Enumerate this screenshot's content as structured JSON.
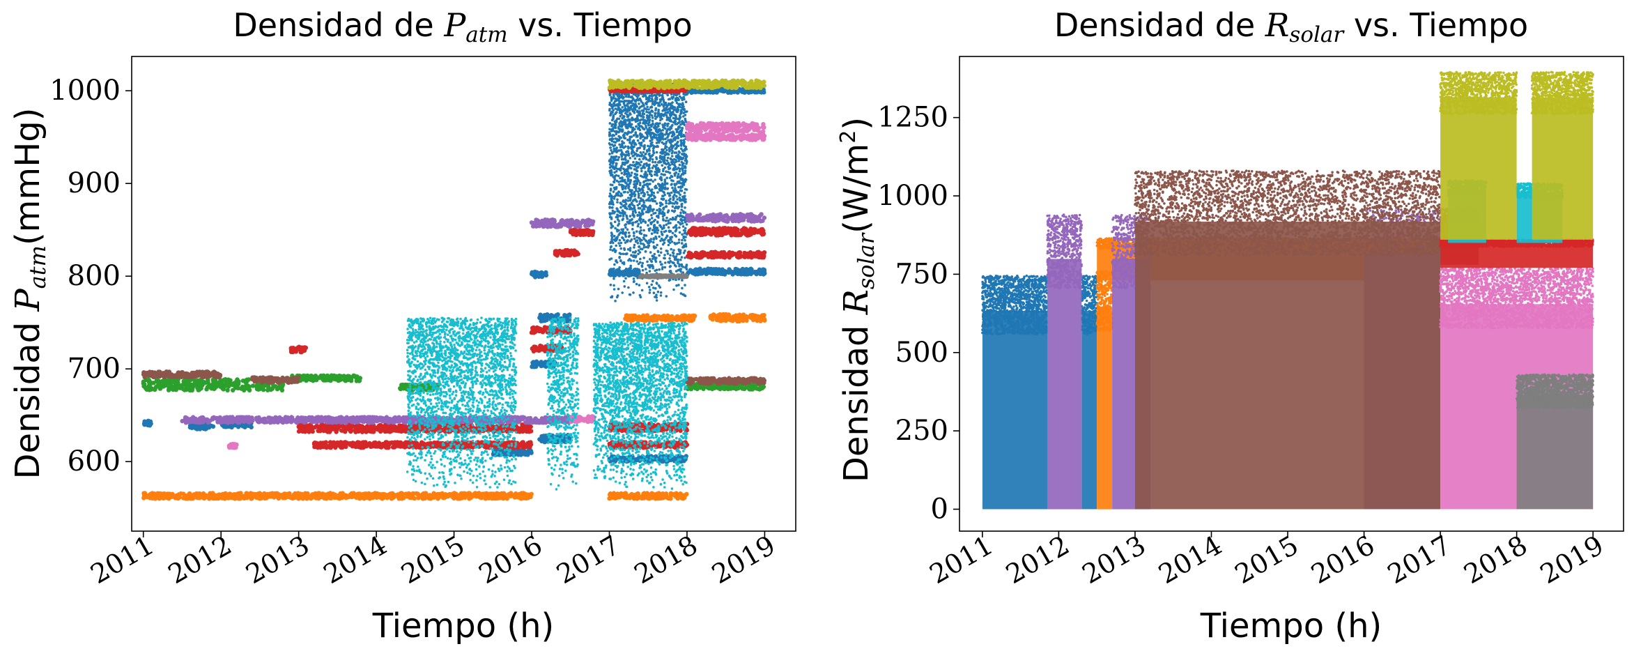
{
  "figure": {
    "xlabel": "Tiempo (h)"
  },
  "chart_data": [
    {
      "type": "scatter",
      "title_parts": {
        "prefix": "Densidad de ",
        "symbol": "P",
        "subscript": "atm",
        "suffix": " vs. Tiempo"
      },
      "xlabel": "Tiempo (h)",
      "ylabel_parts": {
        "prefix": "Densidad ",
        "symbol": "P",
        "subscript": "atm",
        "suffix": "(mmHg)"
      },
      "x_ticks": [
        "2011",
        "2012",
        "2013",
        "2014",
        "2015",
        "2016",
        "2017",
        "2018",
        "2019"
      ],
      "y_ticks": [
        "600",
        "700",
        "800",
        "900",
        "1000"
      ],
      "xlim": [
        2010.85,
        2019.4
      ],
      "ylim": [
        525,
        1037
      ],
      "grid": false,
      "legend": "none",
      "series": [
        {
          "color": "#1f77b4",
          "segments": [
            {
              "x": [
                2011.0,
                2011.1
              ],
              "y": [
                641,
                641
              ],
              "spread": 3
            },
            {
              "x": [
                2011.6,
                2011.9
              ],
              "y": [
                638,
                638
              ],
              "spread": 3
            },
            {
              "x": [
                2012.0,
                2012.4
              ],
              "y": [
                640,
                640
              ],
              "spread": 3
            },
            {
              "x": [
                2015.5,
                2016.0
              ],
              "y": [
                610,
                610
              ],
              "spread": 3
            },
            {
              "x": [
                2016.1,
                2016.5
              ],
              "y": [
                625,
                625
              ],
              "spread": 4
            },
            {
              "x": [
                2017.0,
                2018.0
              ],
              "y": [
                603,
                603
              ],
              "spread": 3
            },
            {
              "x": [
                2016.0,
                2016.3
              ],
              "y": [
                705,
                705
              ],
              "spread": 3
            },
            {
              "x": [
                2016.0,
                2016.2
              ],
              "y": [
                802,
                802
              ],
              "spread": 3
            },
            {
              "x": [
                2016.1,
                2016.5
              ],
              "y": [
                755,
                755
              ],
              "spread": 4
            },
            {
              "x": [
                2017.0,
                2017.4
              ],
              "y": [
                804,
                804
              ],
              "spread": 3
            },
            {
              "x": [
                2018.0,
                2019.0
              ],
              "y": [
                805,
                805
              ],
              "spread": 3
            },
            {
              "x": [
                2017.0,
                2018.0
              ],
              "y": [
                1003,
                1003
              ],
              "spread": 4
            },
            {
              "x": [
                2018.0,
                2019.0
              ],
              "y": [
                1000,
                1000
              ],
              "spread": 2
            }
          ],
          "burst": {
            "x": [
              2017.0,
              2018.0
            ],
            "y": [
              770,
              1005
            ],
            "n": 2600
          }
        },
        {
          "color": "#ff7f0e",
          "segments": [
            {
              "x": [
                2011.0,
                2016.0
              ],
              "y": [
                563,
                563
              ],
              "spread": 3
            },
            {
              "x": [
                2017.0,
                2018.0
              ],
              "y": [
                563,
                563
              ],
              "spread": 3
            },
            {
              "x": [
                2017.2,
                2018.1
              ],
              "y": [
                755,
                755
              ],
              "spread": 3
            },
            {
              "x": [
                2018.3,
                2019.0
              ],
              "y": [
                755,
                755
              ],
              "spread": 4
            }
          ]
        },
        {
          "color": "#2ca02c",
          "segments": [
            {
              "x": [
                2011.0,
                2012.8
              ],
              "y": [
                683,
                683
              ],
              "spread": 6
            },
            {
              "x": [
                2012.9,
                2013.8
              ],
              "y": [
                690,
                690
              ],
              "spread": 3
            },
            {
              "x": [
                2014.3,
                2014.8
              ],
              "y": [
                680,
                680
              ],
              "spread": 3
            },
            {
              "x": [
                2018.0,
                2019.0
              ],
              "y": [
                681,
                681
              ],
              "spread": 3
            }
          ]
        },
        {
          "color": "#d62728",
          "segments": [
            {
              "x": [
                2012.9,
                2013.1
              ],
              "y": [
                721,
                721
              ],
              "spread": 3
            },
            {
              "x": [
                2013.0,
                2016.0
              ],
              "y": [
                636,
                636
              ],
              "spread": 4
            },
            {
              "x": [
                2013.2,
                2016.0
              ],
              "y": [
                618,
                618
              ],
              "spread": 3
            },
            {
              "x": [
                2016.0,
                2016.5
              ],
              "y": [
                742,
                742
              ],
              "spread": 3
            },
            {
              "x": [
                2016.0,
                2016.4
              ],
              "y": [
                722,
                722
              ],
              "spread": 3
            },
            {
              "x": [
                2016.3,
                2016.6
              ],
              "y": [
                825,
                825
              ],
              "spread": 3
            },
            {
              "x": [
                2016.5,
                2016.8
              ],
              "y": [
                847,
                847
              ],
              "spread": 3
            },
            {
              "x": [
                2017.0,
                2018.0
              ],
              "y": [
                637,
                637
              ],
              "spread": 4
            },
            {
              "x": [
                2017.0,
                2018.0
              ],
              "y": [
                618,
                618
              ],
              "spread": 3
            },
            {
              "x": [
                2018.0,
                2019.0
              ],
              "y": [
                848,
                848
              ],
              "spread": 4
            },
            {
              "x": [
                2018.0,
                2019.0
              ],
              "y": [
                823,
                823
              ],
              "spread": 3
            },
            {
              "x": [
                2017.0,
                2018.0
              ],
              "y": [
                1001,
                1001
              ],
              "spread": 2
            }
          ]
        },
        {
          "color": "#9467bd",
          "segments": [
            {
              "x": [
                2011.5,
                2016.5
              ],
              "y": [
                645,
                645
              ],
              "spread": 3
            },
            {
              "x": [
                2016.0,
                2016.8
              ],
              "y": [
                857,
                857
              ],
              "spread": 4
            },
            {
              "x": [
                2018.0,
                2019.0
              ],
              "y": [
                863,
                863
              ],
              "spread": 4
            }
          ]
        },
        {
          "color": "#8c564b",
          "segments": [
            {
              "x": [
                2011.0,
                2012.0
              ],
              "y": [
                694,
                694
              ],
              "spread": 3
            },
            {
              "x": [
                2012.4,
                2013.0
              ],
              "y": [
                688,
                688
              ],
              "spread": 3
            },
            {
              "x": [
                2018.0,
                2019.0
              ],
              "y": [
                687,
                687
              ],
              "spread": 3
            }
          ]
        },
        {
          "color": "#e377c2",
          "segments": [
            {
              "x": [
                2012.1,
                2012.2
              ],
              "y": [
                617,
                617
              ],
              "spread": 2
            },
            {
              "x": [
                2016.5,
                2016.8
              ],
              "y": [
                646,
                646
              ],
              "spread": 3
            },
            {
              "x": [
                2018.0,
                2019.0
              ],
              "y": [
                960,
                960
              ],
              "spread": 5
            },
            {
              "x": [
                2018.0,
                2019.0
              ],
              "y": [
                950,
                950
              ],
              "spread": 3
            }
          ]
        },
        {
          "color": "#7f7f7f",
          "segments": [
            {
              "x": [
                2017.4,
                2018.0
              ],
              "y": [
                800,
                800
              ],
              "spread": 1
            }
          ]
        },
        {
          "color": "#bcbd22",
          "segments": [
            {
              "x": [
                2017.0,
                2019.0
              ],
              "y": [
                1007,
                1007
              ],
              "spread": 4
            }
          ]
        },
        {
          "color": "#17becf",
          "bursts": [
            {
              "x": [
                2014.4,
                2015.8
              ],
              "y": [
                570,
                755
              ],
              "n": 2600
            },
            {
              "x": [
                2016.2,
                2016.6
              ],
              "y": [
                570,
                755
              ],
              "n": 700
            },
            {
              "x": [
                2016.8,
                2018.0
              ],
              "y": [
                570,
                750
              ],
              "n": 2600
            }
          ]
        }
      ]
    },
    {
      "type": "scatter",
      "title_parts": {
        "prefix": "Densidad de ",
        "symbol": "R",
        "subscript": "solar",
        "suffix": " vs. Tiempo"
      },
      "xlabel": "Tiempo (h)",
      "ylabel_parts": {
        "prefix": "Densidad ",
        "symbol": "R",
        "subscript": "solar",
        "suffix": "(W/m",
        "sup": "2",
        "end": ")"
      },
      "x_ticks": [
        "2011",
        "2012",
        "2013",
        "2014",
        "2015",
        "2016",
        "2017",
        "2018",
        "2019"
      ],
      "y_ticks": [
        "0",
        "250",
        "500",
        "750",
        "1000",
        "1250"
      ],
      "xlim": [
        2010.7,
        2019.4
      ],
      "ylim": [
        -70,
        1445
      ],
      "grid": false,
      "legend": "none",
      "series": [
        {
          "color": "#1f77b4",
          "areas": [
            {
              "x": [
                2011.0,
                2011.85
              ],
              "y": [
                0,
                745
              ],
              "n": 1400
            },
            {
              "x": [
                2012.3,
                2012.5
              ],
              "y": [
                0,
                745
              ],
              "n": 300
            }
          ]
        },
        {
          "color": "#ff7f0e",
          "areas": [
            {
              "x": [
                2012.5,
                2017.0
              ],
              "y": [
                730,
                865
              ],
              "n": 2200
            },
            {
              "x": [
                2012.5,
                2012.7
              ],
              "y": [
                0,
                760
              ],
              "n": 300
            }
          ]
        },
        {
          "color": "#9467bd",
          "areas": [
            {
              "x": [
                2011.85,
                2012.3
              ],
              "y": [
                0,
                940
              ],
              "n": 600
            },
            {
              "x": [
                2012.7,
                2013.2
              ],
              "y": [
                0,
                940
              ],
              "n": 500
            },
            {
              "x": [
                2016.0,
                2017.0
              ],
              "y": [
                0,
                960
              ],
              "n": 500
            }
          ]
        },
        {
          "color": "#8c564b",
          "areas": [
            {
              "x": [
                2013.0,
                2017.0
              ],
              "y": [
                0,
                1080
              ],
              "n": 3800
            },
            {
              "x": [
                2017.0,
                2017.5
              ],
              "y": [
                780,
                960
              ],
              "n": 250
            }
          ]
        },
        {
          "color": "#e377c2",
          "areas": [
            {
              "x": [
                2017.0,
                2019.0
              ],
              "y": [
                0,
                770
              ],
              "n": 2600
            }
          ]
        },
        {
          "color": "#7f7f7f",
          "areas": [
            {
              "x": [
                2018.0,
                2019.0
              ],
              "y": [
                0,
                430
              ],
              "n": 1500
            }
          ]
        },
        {
          "color": "#d62728",
          "areas": [
            {
              "x": [
                2017.0,
                2019.0
              ],
              "y": [
                770,
                860
              ],
              "n": 900
            }
          ]
        },
        {
          "color": "#17becf",
          "areas": [
            {
              "x": [
                2017.1,
                2017.6
              ],
              "y": [
                850,
                1050
              ],
              "n": 350
            },
            {
              "x": [
                2018.0,
                2018.6
              ],
              "y": [
                850,
                1040
              ],
              "n": 350
            }
          ]
        },
        {
          "color": "#bcbd22",
          "areas": [
            {
              "x": [
                2017.0,
                2018.0
              ],
              "y": [
                860,
                1395
              ],
              "n": 1100
            },
            {
              "x": [
                2018.2,
                2019.0
              ],
              "y": [
                860,
                1395
              ],
              "n": 1000
            }
          ]
        }
      ]
    }
  ]
}
